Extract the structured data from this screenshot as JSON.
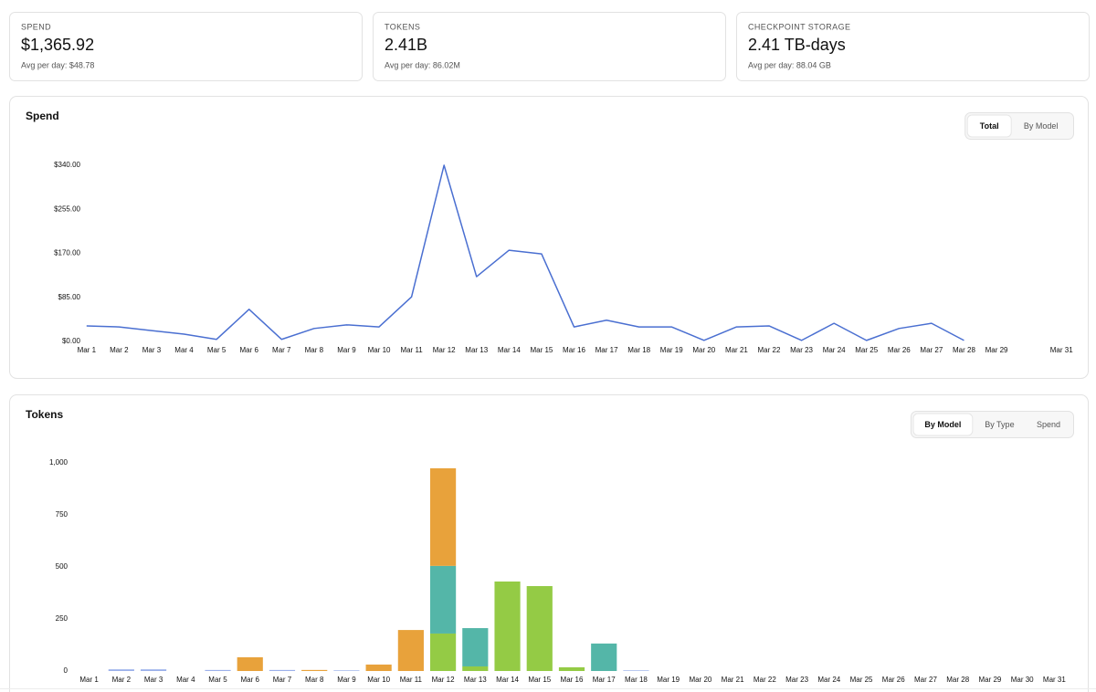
{
  "cards": [
    {
      "label": "SPEND",
      "value": "$1,365.92",
      "sub": "Avg per day: $48.78"
    },
    {
      "label": "TOKENS",
      "value": "2.41B",
      "sub": "Avg per day: 86.02M"
    },
    {
      "label": "CHECKPOINT STORAGE",
      "value": "2.41 TB-days",
      "sub": "Avg per day: 88.04 GB"
    }
  ],
  "panels": [
    {
      "tabs": [
        "Total",
        "By Model"
      ],
      "active": 0
    },
    {
      "tabs": [
        "By Model",
        "By Type",
        "Spend"
      ],
      "active": 0
    }
  ],
  "chart_data": [
    {
      "type": "line",
      "title": "Spend",
      "color": "#4a6fd1",
      "categories": [
        "Mar 1",
        "Mar 2",
        "Mar 3",
        "Mar 4",
        "Mar 5",
        "Mar 6",
        "Mar 7",
        "Mar 8",
        "Mar 9",
        "Mar 10",
        "Mar 11",
        "Mar 12",
        "Mar 13",
        "Mar 14",
        "Mar 15",
        "Mar 16",
        "Mar 17",
        "Mar 18",
        "Mar 19",
        "Mar 20",
        "Mar 21",
        "Mar 22",
        "Mar 23",
        "Mar 24",
        "Mar 25",
        "Mar 26",
        "Mar 27",
        "Mar 28",
        "Mar 29",
        null,
        "Mar 31"
      ],
      "values": [
        30,
        28,
        21,
        14,
        4,
        62,
        4,
        25,
        32,
        28,
        86,
        340,
        125,
        176,
        169,
        28,
        41,
        28,
        28,
        2,
        28,
        30,
        2,
        35,
        2,
        25,
        35,
        2,
        null,
        null,
        null
      ],
      "ylim": [
        0,
        340
      ],
      "yticks": [
        {
          "value": 0,
          "label": "$0.00"
        },
        {
          "value": 85,
          "label": "$85.00"
        },
        {
          "value": 170,
          "label": "$170.00"
        },
        {
          "value": 255,
          "label": "$255.00"
        },
        {
          "value": 340,
          "label": "$340.00"
        }
      ]
    },
    {
      "type": "bar",
      "title": "Tokens",
      "stacked": true,
      "categories": [
        "Mar 1",
        "Mar 2",
        "Mar 3",
        "Mar 4",
        "Mar 5",
        "Mar 6",
        "Mar 7",
        "Mar 8",
        "Mar 9",
        "Mar 10",
        "Mar 11",
        "Mar 12",
        "Mar 13",
        "Mar 14",
        "Mar 15",
        "Mar 16",
        "Mar 17",
        "Mar 18",
        "Mar 19",
        "Mar 20",
        "Mar 21",
        "Mar 22",
        "Mar 23",
        "Mar 24",
        "Mar 25",
        "Mar 26",
        "Mar 27",
        "Mar 28",
        "Mar 29",
        "Mar 30",
        "Mar 31"
      ],
      "series": [
        {
          "color": "#94cb45",
          "values": [
            0,
            0,
            0,
            0,
            0,
            0,
            0,
            0,
            0,
            0,
            0,
            180,
            22,
            430,
            408,
            18,
            0,
            0,
            0,
            0,
            0,
            0,
            0,
            0,
            0,
            0,
            0,
            0,
            0,
            0,
            0
          ]
        },
        {
          "color": "#54b6a8",
          "values": [
            0,
            0,
            0,
            0,
            0,
            0,
            0,
            0,
            0,
            0,
            0,
            325,
            184,
            0,
            0,
            0,
            132,
            0,
            0,
            0,
            0,
            0,
            0,
            0,
            0,
            0,
            0,
            0,
            0,
            0,
            0
          ]
        },
        {
          "color": "#e8a23b",
          "values": [
            0,
            0,
            0,
            0,
            0,
            66,
            0,
            5,
            0,
            31,
            197,
            469,
            0,
            0,
            0,
            0,
            0,
            0,
            0,
            0,
            0,
            0,
            0,
            0,
            0,
            0,
            0,
            0,
            0,
            0,
            0
          ]
        },
        {
          "color": "#9bb0ea",
          "values": [
            0,
            8,
            8,
            0,
            5,
            0,
            5,
            0,
            3,
            0,
            0,
            0,
            0,
            0,
            0,
            0,
            0,
            3,
            0,
            0,
            0,
            0,
            0,
            0,
            0,
            0,
            0,
            0,
            0,
            0,
            0
          ]
        }
      ],
      "ylim": [
        0,
        1000
      ],
      "yticks": [
        0,
        250,
        500,
        750,
        {
          "value": 1000,
          "label": "1,000"
        }
      ]
    }
  ]
}
